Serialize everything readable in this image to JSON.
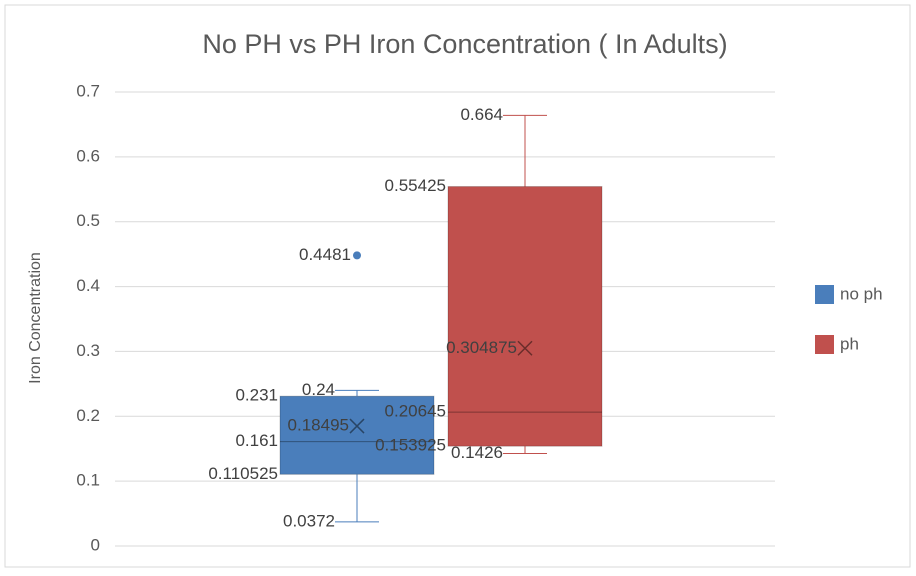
{
  "chart_data": {
    "type": "box",
    "title": "No PH vs PH Iron Concentration ( In Adults)",
    "ylabel": "Iron Concentration",
    "ylim": [
      0,
      0.7
    ],
    "yticks": [
      0,
      0.1,
      0.2,
      0.3,
      0.4,
      0.5,
      0.6,
      0.7
    ],
    "grid": true,
    "legend": "right",
    "series": [
      {
        "name": "no ph",
        "color": "#4a7ebb",
        "min": 0.0372,
        "q1": 0.110525,
        "median": 0.161,
        "q3": 0.231,
        "max": 0.24,
        "mean": 0.18495,
        "outliers": [
          0.4481
        ]
      },
      {
        "name": "ph",
        "color": "#c0504d",
        "min": 0.1426,
        "q1": 0.153925,
        "median": 0.20645,
        "q3": 0.55425,
        "max": 0.664,
        "mean": 0.304875,
        "outliers": []
      }
    ]
  }
}
